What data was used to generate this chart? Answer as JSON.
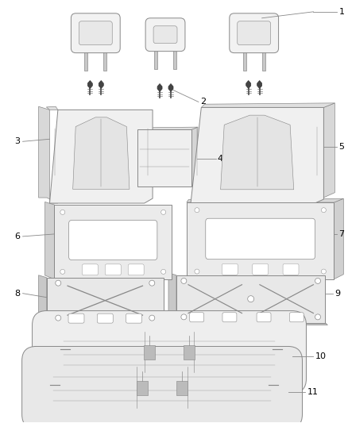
{
  "background_color": "#ffffff",
  "line_color": "#888888",
  "dark_line": "#555555",
  "label_color": "#000000",
  "fig_width": 4.38,
  "fig_height": 5.33,
  "dpi": 100
}
